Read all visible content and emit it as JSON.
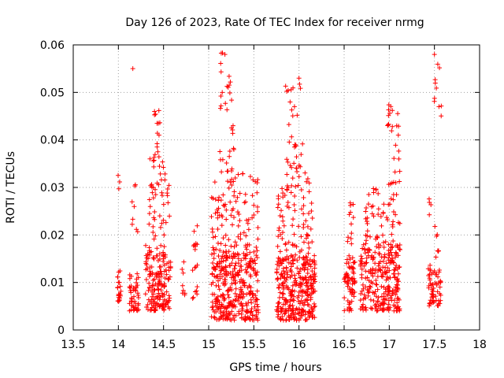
{
  "chart_data": {
    "type": "scatter",
    "title": "Day 126 of 2023, Rate Of TEC Index for receiver nrmg",
    "xlabel": "GPS time / hours",
    "ylabel": "ROTI / TECUs",
    "xlim": [
      13.5,
      18
    ],
    "ylim": [
      0,
      0.06
    ],
    "x_ticks": [
      "13.5",
      "14",
      "14.5",
      "15",
      "15.5",
      "16",
      "16.5",
      "17",
      "17.5",
      "18"
    ],
    "y_ticks": [
      "0",
      "0.01",
      "0.02",
      "0.03",
      "0.04",
      "0.05",
      "0.06"
    ],
    "grid": true,
    "marker": "+",
    "color": "#ff0000",
    "series": [
      {
        "name": "ROTI",
        "clusters": [
          {
            "x": [
              13.99,
              14.03
            ],
            "y_range": [
              0.006,
              0.013
            ],
            "n": 22,
            "seed": 11
          },
          {
            "x": [
              13.99,
              14.02
            ],
            "y_range": [
              0.029,
              0.035
            ],
            "n": 3,
            "seed": 12
          },
          {
            "x": [
              14.12,
              14.23
            ],
            "y_range": [
              0.004,
              0.012
            ],
            "n": 45,
            "seed": 13
          },
          {
            "x": [
              14.15,
              14.22
            ],
            "y_range": [
              0.018,
              0.031
            ],
            "n": 8,
            "seed": 14
          },
          {
            "x": [
              14.3,
              14.58
            ],
            "y_range": [
              0.004,
              0.018
            ],
            "n": 170,
            "seed": 15
          },
          {
            "x": [
              14.33,
              14.58
            ],
            "y_range": [
              0.018,
              0.036
            ],
            "n": 45,
            "seed": 16
          },
          {
            "x": [
              14.38,
              14.46
            ],
            "y_range": [
              0.035,
              0.048
            ],
            "n": 14,
            "seed": 17
          },
          {
            "x": [
              14.68,
              14.74
            ],
            "y_range": [
              0.007,
              0.016
            ],
            "n": 8,
            "seed": 18
          },
          {
            "x": [
              14.82,
              14.88
            ],
            "y_range": [
              0.006,
              0.022
            ],
            "n": 18,
            "seed": 19
          },
          {
            "x": [
              15.03,
              15.55
            ],
            "y_range": [
              0.002,
              0.016
            ],
            "n": 330,
            "seed": 20
          },
          {
            "x": [
              15.03,
              15.55
            ],
            "y_range": [
              0.016,
              0.033
            ],
            "n": 110,
            "seed": 21
          },
          {
            "x": [
              15.12,
              15.28
            ],
            "y_range": [
              0.033,
              0.059
            ],
            "n": 32,
            "seed": 22
          },
          {
            "x": [
              15.75,
              16.18
            ],
            "y_range": [
              0.002,
              0.015
            ],
            "n": 300,
            "seed": 23
          },
          {
            "x": [
              15.75,
              16.18
            ],
            "y_range": [
              0.015,
              0.034
            ],
            "n": 95,
            "seed": 24
          },
          {
            "x": [
              15.85,
              16.05
            ],
            "y_range": [
              0.034,
              0.053
            ],
            "n": 30,
            "seed": 25
          },
          {
            "x": [
              16.5,
              16.62
            ],
            "y_range": [
              0.004,
              0.015
            ],
            "n": 65,
            "seed": 26
          },
          {
            "x": [
              16.52,
              16.62
            ],
            "y_range": [
              0.015,
              0.027
            ],
            "n": 14,
            "seed": 27
          },
          {
            "x": [
              16.68,
              17.12
            ],
            "y_range": [
              0.004,
              0.018
            ],
            "n": 260,
            "seed": 28
          },
          {
            "x": [
              16.72,
              17.12
            ],
            "y_range": [
              0.018,
              0.03
            ],
            "n": 55,
            "seed": 29
          },
          {
            "x": [
              16.98,
              17.12
            ],
            "y_range": [
              0.03,
              0.048
            ],
            "n": 26,
            "seed": 30
          },
          {
            "x": [
              17.43,
              17.57
            ],
            "y_range": [
              0.005,
              0.013
            ],
            "n": 60,
            "seed": 31
          },
          {
            "x": [
              17.43,
              17.55
            ],
            "y_range": [
              0.013,
              0.028
            ],
            "n": 12,
            "seed": 32
          },
          {
            "x": [
              17.48,
              17.58
            ],
            "y_range": [
              0.045,
              0.059
            ],
            "n": 9,
            "seed": 33
          }
        ],
        "points": [
          [
            14.16,
            0.055
          ],
          [
            14.45,
            0.041
          ],
          [
            15.18,
            0.058
          ],
          [
            15.15,
            0.05
          ],
          [
            16.0,
            0.053
          ],
          [
            17.5,
            0.058
          ],
          [
            17.55,
            0.047
          ],
          [
            14.35,
            0.036
          ],
          [
            14.4,
            0.046
          ],
          [
            15.27,
            0.043
          ],
          [
            15.95,
            0.047
          ],
          [
            17.1,
            0.041
          ]
        ]
      }
    ]
  }
}
